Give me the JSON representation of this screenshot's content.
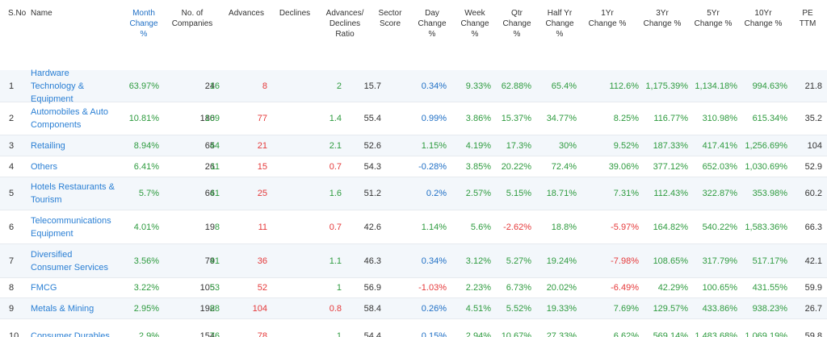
{
  "table": {
    "headers": [
      "S.No",
      "Name",
      "Month\nChange\n%",
      "No. of\nCompanies",
      "Advances",
      "Declines",
      "Advances/\nDeclines\nRatio",
      "Sector\nScore",
      "Day\nChange\n%",
      "Week\nChange\n%",
      "Qtr\nChange\n%",
      "Half Yr\nChange\n%",
      "1Yr\nChange %",
      "3Yr\nChange %",
      "5Yr\nChange %",
      "10Yr\nChange %",
      "PE\nTTM"
    ],
    "rows": [
      [
        1,
        "Hardware Technology & Equipment",
        "63.97%",
        24,
        16,
        8,
        2,
        15.7,
        "0.34%",
        "9.33%",
        "62.88%",
        "65.4%",
        "112.6%",
        "1,175.39%",
        "1,134.18%",
        "994.63%",
        21.8
      ],
      [
        2,
        "Automobiles & Auto Components",
        "10.81%",
        186,
        109,
        77,
        1.4,
        55.4,
        "0.99%",
        "3.86%",
        "15.37%",
        "34.77%",
        "8.25%",
        "116.77%",
        "310.98%",
        "615.34%",
        35.2
      ],
      [
        3,
        "Retailing",
        "8.94%",
        65,
        44,
        21,
        2.1,
        52.6,
        "1.15%",
        "4.19%",
        "17.3%",
        "30%",
        "9.52%",
        "187.33%",
        "417.41%",
        "1,256.69%",
        104
      ],
      [
        4,
        "Others",
        "6.41%",
        26,
        11,
        15,
        0.7,
        54.3,
        "-0.28%",
        "3.85%",
        "20.22%",
        "72.4%",
        "39.06%",
        "377.12%",
        "652.03%",
        "1,030.69%",
        52.9
      ],
      [
        5,
        "Hotels Restaurants & Tourism",
        "5.7%",
        66,
        41,
        25,
        1.6,
        51.2,
        "0.2%",
        "2.57%",
        "5.15%",
        "18.71%",
        "7.31%",
        "112.43%",
        "322.87%",
        "353.98%",
        60.2
      ],
      [
        6,
        "Telecommunications Equipment",
        "4.01%",
        19,
        8,
        11,
        0.7,
        42.6,
        "1.14%",
        "5.6%",
        "-2.62%",
        "18.8%",
        "-5.97%",
        "164.82%",
        "540.22%",
        "1,583.36%",
        66.3
      ],
      [
        7,
        "Diversified Consumer Services",
        "3.56%",
        79,
        41,
        36,
        1.1,
        46.3,
        "0.34%",
        "3.12%",
        "5.27%",
        "19.24%",
        "-7.98%",
        "108.65%",
        "317.79%",
        "517.17%",
        42.1
      ],
      [
        8,
        "FMCG",
        "3.22%",
        105,
        53,
        52,
        1,
        56.9,
        "-1.03%",
        "2.23%",
        "6.73%",
        "20.02%",
        "-6.49%",
        "42.29%",
        "100.65%",
        "431.55%",
        59.9
      ],
      [
        9,
        "Metals & Mining",
        "2.95%",
        192,
        88,
        104,
        0.8,
        58.4,
        "0.26%",
        "4.51%",
        "5.52%",
        "19.33%",
        "7.69%",
        "129.57%",
        "433.86%",
        "938.23%",
        26.7
      ],
      [
        10,
        "Consumer Durables",
        "2.9%",
        154,
        76,
        78,
        1,
        54.4,
        "0.15%",
        "2.94%",
        "10.67%",
        "27.33%",
        "6.62%",
        "569.14%",
        "1,483.68%",
        "1,069.19%",
        59.8
      ]
    ]
  }
}
